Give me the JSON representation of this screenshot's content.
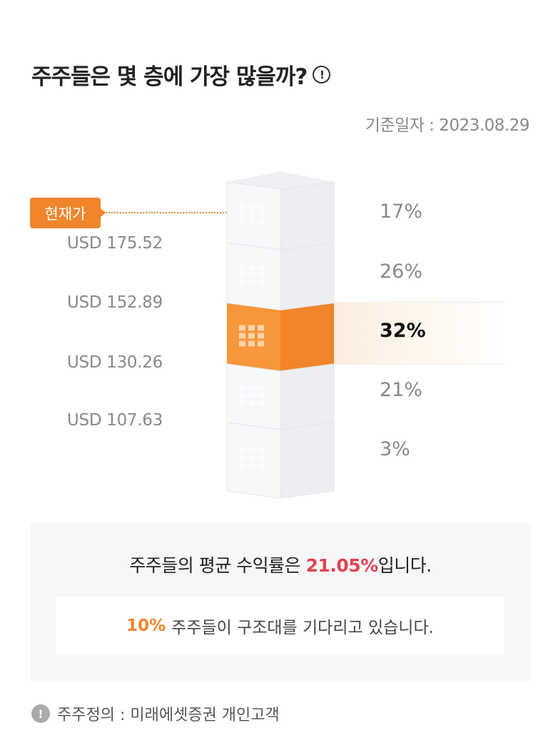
{
  "header": {
    "title": "주주들은 몇 층에 가장 많을까?",
    "info_icon": "!",
    "date_label": "기준일자 : 2023.08.29"
  },
  "chart_data": {
    "type": "bar",
    "title": "주주들은 몇 층에 가장 많을까?",
    "current_price_label": "현재가",
    "price_boundaries": [
      "USD 175.52",
      "USD 152.89",
      "USD 130.26",
      "USD 107.63"
    ],
    "floors": [
      {
        "label": "17%",
        "value": 17
      },
      {
        "label": "26%",
        "value": 26
      },
      {
        "label": "32%",
        "value": 32,
        "highlight": true
      },
      {
        "label": "21%",
        "value": 21
      },
      {
        "label": "3%",
        "value": 3
      }
    ],
    "current_price_floor": 0
  },
  "summary": {
    "avg_prefix": "주주들의 평균 수익률은 ",
    "avg_value": "21.05%",
    "avg_suffix": "입니다.",
    "rescue_value": "10%",
    "rescue_text": "주주들이 구조대를 기다리고 있습니다."
  },
  "footnote": {
    "icon": "!",
    "text": "주주정의 : 미래에셋증권 개인고객"
  },
  "colors": {
    "accent": "#f0852b",
    "red": "#e0434f"
  }
}
